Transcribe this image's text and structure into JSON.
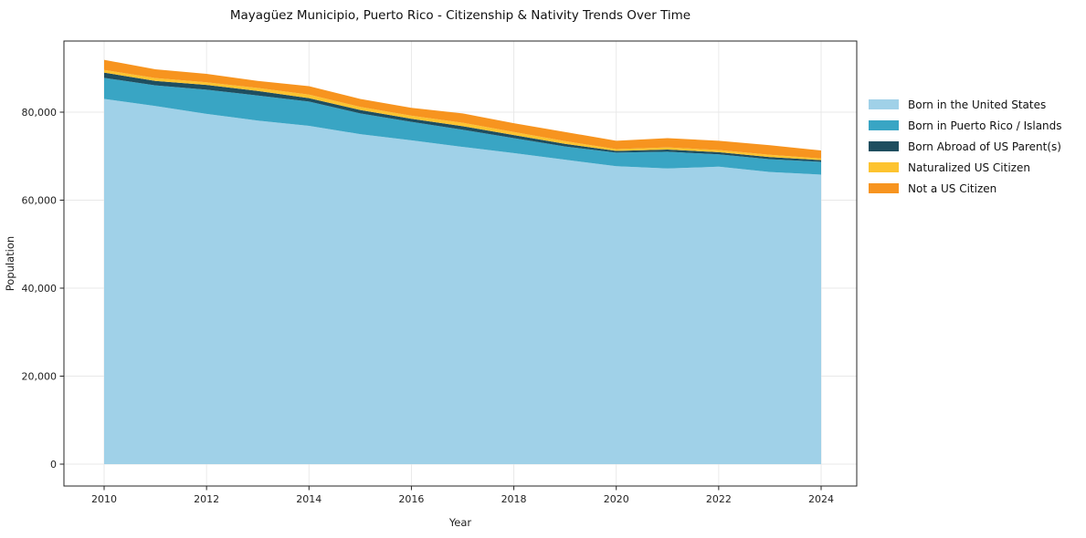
{
  "title": "Mayagüez Municipio, Puerto Rico - Citizenship & Nativity Trends Over Time",
  "chart_data": {
    "type": "area",
    "stacked": true,
    "title": "Mayagüez Municipio, Puerto Rico - Citizenship & Nativity Trends Over Time",
    "xlabel": "Year",
    "ylabel": "Population",
    "x": [
      2010,
      2011,
      2012,
      2013,
      2014,
      2015,
      2016,
      2017,
      2018,
      2019,
      2020,
      2021,
      2022,
      2023,
      2024
    ],
    "series": [
      {
        "name": "Born in the United States",
        "color": "#a0d1e8",
        "values": [
          83000,
          81400,
          79600,
          78100,
          76900,
          75000,
          73600,
          72100,
          70700,
          69200,
          67700,
          67200,
          67600,
          66400,
          65800
        ]
      },
      {
        "name": "Born in Puerto Rico / Islands",
        "color": "#39a5c4",
        "values": [
          4800,
          4700,
          5500,
          5700,
          5500,
          4700,
          4200,
          3900,
          3400,
          3000,
          3100,
          3800,
          2800,
          2900,
          2900
        ]
      },
      {
        "name": "Born Abroad of US Parent(s)",
        "color": "#1f4e5f",
        "values": [
          1200,
          1000,
          1100,
          1000,
          800,
          800,
          700,
          800,
          700,
          600,
          400,
          500,
          500,
          500,
          400
        ]
      },
      {
        "name": "Naturalized US Citizen",
        "color": "#fdc32f",
        "values": [
          600,
          650,
          600,
          700,
          800,
          700,
          700,
          800,
          700,
          600,
          400,
          500,
          500,
          500,
          400
        ]
      },
      {
        "name": "Not a US Citizen",
        "color": "#f7941f",
        "values": [
          2300,
          2000,
          1900,
          1600,
          1900,
          1800,
          1800,
          2100,
          2000,
          2100,
          1900,
          2100,
          2100,
          2200,
          1800
        ]
      }
    ],
    "xticks": [
      2010,
      2012,
      2014,
      2016,
      2018,
      2020,
      2022,
      2024
    ],
    "yticks": [
      0,
      20000,
      40000,
      60000,
      80000
    ],
    "ytick_labels": [
      "0",
      "20,000",
      "40,000",
      "60,000",
      "80,000"
    ],
    "ylim": [
      0,
      96000
    ],
    "grid": true,
    "legend_position": "right"
  }
}
